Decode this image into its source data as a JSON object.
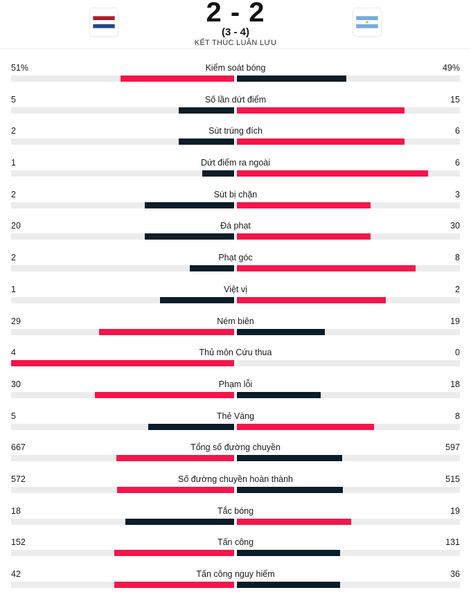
{
  "match": {
    "score": "2 - 2",
    "penalty": "(3 - 4)",
    "status": "KẾT THÚC LUÂN LƯU",
    "home_flag_icon": "netherlands-flag-icon",
    "away_flag_icon": "argentina-flag-icon"
  },
  "colors": {
    "leader": "#f5154a",
    "trailer": "#0b1d29",
    "track": "#ececec"
  },
  "stats": [
    {
      "label": "Kiểm soát bóng",
      "home": "51%",
      "away": "49%",
      "home_num": 51,
      "away_num": 49
    },
    {
      "label": "Số lần dứt điểm",
      "home": "5",
      "away": "15",
      "home_num": 5,
      "away_num": 15
    },
    {
      "label": "Sút trúng đích",
      "home": "2",
      "away": "6",
      "home_num": 2,
      "away_num": 6
    },
    {
      "label": "Dứt điểm ra ngoài",
      "home": "1",
      "away": "6",
      "home_num": 1,
      "away_num": 6
    },
    {
      "label": "Sút bị chặn",
      "home": "2",
      "away": "3",
      "home_num": 2,
      "away_num": 3
    },
    {
      "label": "Đá phạt",
      "home": "20",
      "away": "30",
      "home_num": 20,
      "away_num": 30
    },
    {
      "label": "Phạt góc",
      "home": "2",
      "away": "8",
      "home_num": 2,
      "away_num": 8
    },
    {
      "label": "Việt vị",
      "home": "1",
      "away": "2",
      "home_num": 1,
      "away_num": 2
    },
    {
      "label": "Ném biên",
      "home": "29",
      "away": "19",
      "home_num": 29,
      "away_num": 19
    },
    {
      "label": "Thủ môn Cứu thua",
      "home": "4",
      "away": "0",
      "home_num": 4,
      "away_num": 0
    },
    {
      "label": "Phạm lỗi",
      "home": "30",
      "away": "18",
      "home_num": 30,
      "away_num": 18
    },
    {
      "label": "Thẻ Vàng",
      "home": "5",
      "away": "8",
      "home_num": 5,
      "away_num": 8
    },
    {
      "label": "Tổng số đường chuyền",
      "home": "667",
      "away": "597",
      "home_num": 667,
      "away_num": 597
    },
    {
      "label": "Số đường chuyền hoàn thành",
      "home": "572",
      "away": "515",
      "home_num": 572,
      "away_num": 515
    },
    {
      "label": "Tắc bóng",
      "home": "18",
      "away": "19",
      "home_num": 18,
      "away_num": 19
    },
    {
      "label": "Tấn công",
      "home": "152",
      "away": "131",
      "home_num": 152,
      "away_num": 131
    },
    {
      "label": "Tấn công nguy hiểm",
      "home": "42",
      "away": "36",
      "home_num": 42,
      "away_num": 36
    }
  ]
}
